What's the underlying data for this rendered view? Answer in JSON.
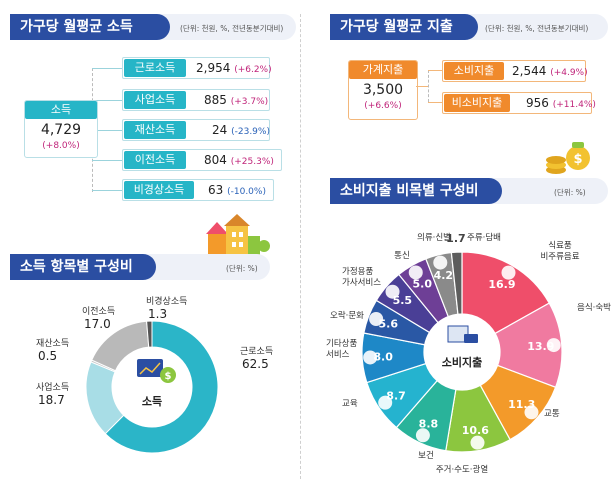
{
  "income_section": {
    "title": "가구당 월평균 소득",
    "unit": "(단위: 천원, %, 전년동분기대비)",
    "total": {
      "label": "소득",
      "value": "4,729",
      "change": "(+8.0%)"
    },
    "items": [
      {
        "label": "근로소득",
        "value": "2,954",
        "change": "(+6.2%)",
        "negative": false
      },
      {
        "label": "사업소득",
        "value": "885",
        "change": "(+3.7%)",
        "negative": false
      },
      {
        "label": "재산소득",
        "value": "24",
        "change": "(-23.9%)",
        "negative": true
      },
      {
        "label": "이전소득",
        "value": "804",
        "change": "(+25.3%)",
        "negative": false
      },
      {
        "label": "비경상소득",
        "value": "63",
        "change": "(-10.0%)",
        "negative": true
      }
    ]
  },
  "expense_section": {
    "title": "가구당 월평균 지출",
    "unit": "(단위: 천원, %, 전년동분기대비)",
    "total": {
      "label": "가계지출",
      "value": "3,500",
      "change": "(+6.6%)"
    },
    "items": [
      {
        "label": "소비지출",
        "value": "2,544",
        "change": "(+4.9%)"
      },
      {
        "label": "비소비지출",
        "value": "956",
        "change": "(+11.4%)"
      }
    ]
  },
  "income_comp": {
    "title": "소득 항목별 구성비",
    "unit": "(단위: %)",
    "center_label": "소득"
  },
  "consumption_comp": {
    "title": "소비지출 비목별 구성비",
    "unit": "(단위: %)",
    "center_label": "소비지출"
  },
  "colors": {
    "navy": "#2b4ea2",
    "teal": "#26b5c7",
    "orange": "#f08a2c",
    "magenta": "#c0257a",
    "blue_neg": "#2a62b8"
  },
  "chart_data": [
    {
      "type": "pie",
      "title": "소득 항목별 구성비",
      "categories": [
        "근로소득",
        "사업소득",
        "재산소득",
        "이전소득",
        "비경상소득"
      ],
      "values": [
        62.5,
        18.7,
        0.5,
        17.0,
        1.3
      ],
      "colors": [
        "#2bb5c8",
        "#a8dde6",
        "#c8c8c8",
        "#b9b9b9",
        "#555555"
      ],
      "unit": "%"
    },
    {
      "type": "pie",
      "title": "소비지출 비목별 구성비",
      "categories": [
        "식료품·비주류음료",
        "음식·숙박",
        "교통",
        "주거·수도·광열",
        "보건",
        "교육",
        "기타상품 서비스",
        "오락·문화",
        "가정용품 가사서비스",
        "통신",
        "의류·신발",
        "주류·담배"
      ],
      "values": [
        16.9,
        13.9,
        11.3,
        10.6,
        8.8,
        8.7,
        8.0,
        5.6,
        5.5,
        5.0,
        4.2,
        1.7
      ],
      "colors": [
        "#ef4e6a",
        "#f07aa0",
        "#f39a2a",
        "#8cc63f",
        "#29b39a",
        "#25b3cf",
        "#1e88c7",
        "#2a58a5",
        "#4a3f96",
        "#6e3f96",
        "#8a8a8a",
        "#5d5d5d"
      ],
      "unit": "%"
    }
  ]
}
